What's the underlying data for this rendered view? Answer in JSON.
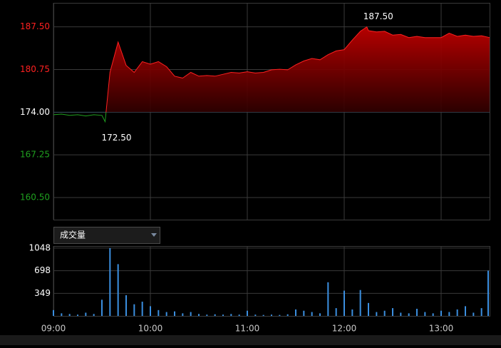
{
  "chart_data": [
    {
      "type": "line",
      "color": "#ff2020",
      "down_color": "#1fa01f",
      "flat_color": "#ffffff",
      "grid": true,
      "x": [
        "09:00",
        "09:05",
        "09:10",
        "09:15",
        "09:20",
        "09:25",
        "09:30",
        "09:32",
        "09:35",
        "09:40",
        "09:45",
        "09:50",
        "09:55",
        "10:00",
        "10:05",
        "10:10",
        "10:15",
        "10:20",
        "10:25",
        "10:30",
        "10:35",
        "10:40",
        "10:45",
        "10:50",
        "10:55",
        "11:00",
        "11:05",
        "11:10",
        "11:15",
        "11:20",
        "11:25",
        "11:30",
        "11:35",
        "11:40",
        "11:45",
        "11:50",
        "11:55",
        "12:00",
        "12:05",
        "12:10",
        "12:14",
        "12:15",
        "12:20",
        "12:25",
        "12:30",
        "12:35",
        "12:40",
        "12:45",
        "12:50",
        "12:55",
        "13:00",
        "13:05",
        "13:10",
        "13:15",
        "13:20",
        "13:25",
        "13:30"
      ],
      "values": [
        173.6,
        173.7,
        173.5,
        173.6,
        173.4,
        173.6,
        173.5,
        172.5,
        180.3,
        185.1,
        181.4,
        180.3,
        182.0,
        181.6,
        182.0,
        181.2,
        179.7,
        179.4,
        180.3,
        179.7,
        179.8,
        179.7,
        180.0,
        180.3,
        180.2,
        180.4,
        180.2,
        180.3,
        180.7,
        180.8,
        180.7,
        181.5,
        182.1,
        182.5,
        182.3,
        183.1,
        183.7,
        183.9,
        185.4,
        186.8,
        187.5,
        186.9,
        186.7,
        186.8,
        186.2,
        186.3,
        185.8,
        186.0,
        185.8,
        185.8,
        185.8,
        186.5,
        186.0,
        186.2,
        186.0,
        186.1,
        185.8
      ],
      "xlim": [
        "09:00",
        "13:30"
      ],
      "xticks": [
        "09:00",
        "10:00",
        "11:00",
        "12:00",
        "13:00"
      ],
      "ylim": [
        157.0,
        191.3
      ],
      "yticks": [
        {
          "value": 160.5,
          "label": "160.50"
        },
        {
          "value": 167.25,
          "label": "167.25"
        },
        {
          "value": 174,
          "label": "174.00"
        },
        {
          "value": 180.75,
          "label": "180.75"
        },
        {
          "value": 187.5,
          "label": "187.50"
        }
      ],
      "annotations": [
        {
          "x": "12:14",
          "value": 187.5,
          "label": "187.50"
        },
        {
          "x": "09:32",
          "value": 172.5,
          "label": "172.50"
        }
      ]
    },
    {
      "type": "bar",
      "title": "成交量",
      "color": "#3b8fe0",
      "grid": true,
      "x": [
        "09:00",
        "09:05",
        "09:10",
        "09:15",
        "09:20",
        "09:25",
        "09:30",
        "09:35",
        "09:40",
        "09:45",
        "09:50",
        "09:55",
        "10:00",
        "10:05",
        "10:10",
        "10:15",
        "10:20",
        "10:25",
        "10:30",
        "10:35",
        "10:40",
        "10:45",
        "10:50",
        "10:55",
        "11:00",
        "11:05",
        "11:10",
        "11:15",
        "11:20",
        "11:25",
        "11:30",
        "11:35",
        "11:40",
        "11:45",
        "11:50",
        "11:55",
        "12:00",
        "12:05",
        "12:10",
        "12:15",
        "12:20",
        "12:25",
        "12:30",
        "12:35",
        "12:40",
        "12:45",
        "12:50",
        "12:55",
        "13:00",
        "13:05",
        "13:10",
        "13:15",
        "13:20",
        "13:25",
        "13:30"
      ],
      "values": [
        90,
        40,
        30,
        20,
        50,
        30,
        250,
        1048,
        800,
        320,
        180,
        220,
        150,
        90,
        60,
        70,
        40,
        60,
        30,
        20,
        25,
        20,
        30,
        20,
        80,
        20,
        15,
        20,
        15,
        25,
        100,
        80,
        60,
        40,
        520,
        120,
        390,
        100,
        400,
        200,
        60,
        80,
        120,
        50,
        40,
        110,
        60,
        40,
        80,
        60,
        100,
        150,
        50,
        120,
        700
      ],
      "xlim": [
        "09:00",
        "13:30"
      ],
      "xticks": [
        "09:00",
        "10:00",
        "11:00",
        "12:00",
        "13:00"
      ],
      "ylim": [
        0,
        1080
      ],
      "yticks": [
        349,
        698,
        1048
      ]
    }
  ]
}
